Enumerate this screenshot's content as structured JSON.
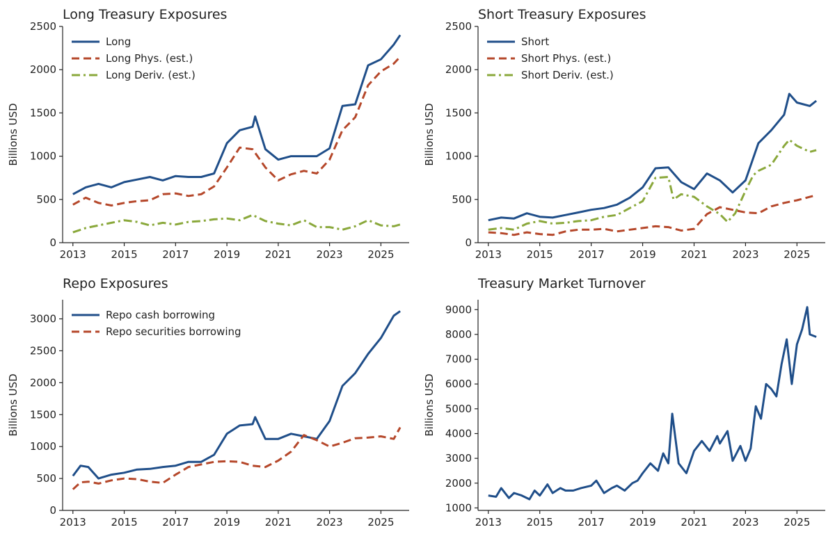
{
  "colors": {
    "blue": "#1f4e89",
    "orange": "#b5472a",
    "green": "#8aa83b",
    "axis": "#222222"
  },
  "chart_data": [
    {
      "type": "line",
      "title": "Long Treasury Exposures",
      "ylabel": "Billions USD",
      "xlim": [
        2012.6,
        2026.1
      ],
      "ylim": [
        0,
        2500
      ],
      "xticks": [
        2013,
        2015,
        2017,
        2019,
        2021,
        2023,
        2025
      ],
      "xtick_labels": [
        "2013",
        "2015",
        "2017",
        "2019",
        "2021",
        "2023",
        "2025"
      ],
      "yticks": [
        0,
        500,
        1000,
        1500,
        2000,
        2500
      ],
      "ytick_labels": [
        "0",
        "500",
        "1000",
        "1500",
        "2000",
        "2500"
      ],
      "legend": "top-left",
      "grid": false,
      "series": [
        {
          "name": "Long",
          "style": "solid",
          "color": "#1f4e89",
          "x": [
            2013.0,
            2013.5,
            2014.0,
            2014.5,
            2015.0,
            2015.5,
            2016.0,
            2016.5,
            2017.0,
            2017.5,
            2018.0,
            2018.5,
            2019.0,
            2019.5,
            2020.0,
            2020.1,
            2020.5,
            2021.0,
            2021.5,
            2022.0,
            2022.5,
            2023.0,
            2023.5,
            2024.0,
            2024.5,
            2025.0,
            2025.5,
            2025.75
          ],
          "y": [
            560,
            640,
            680,
            640,
            700,
            730,
            760,
            720,
            770,
            760,
            760,
            800,
            1150,
            1300,
            1340,
            1460,
            1080,
            960,
            1000,
            1000,
            1000,
            1090,
            1580,
            1600,
            2050,
            2120,
            2290,
            2400
          ]
        },
        {
          "name": "Long Phys. (est.)",
          "style": "dashed",
          "color": "#b5472a",
          "x": [
            2013.0,
            2013.5,
            2014.0,
            2014.5,
            2015.0,
            2015.5,
            2016.0,
            2016.5,
            2017.0,
            2017.5,
            2018.0,
            2018.5,
            2019.0,
            2019.5,
            2020.0,
            2020.5,
            2021.0,
            2021.5,
            2022.0,
            2022.5,
            2023.0,
            2023.5,
            2024.0,
            2024.5,
            2025.0,
            2025.5,
            2025.75
          ],
          "y": [
            440,
            520,
            460,
            430,
            460,
            480,
            490,
            560,
            570,
            540,
            560,
            650,
            870,
            1100,
            1080,
            870,
            720,
            790,
            830,
            800,
            960,
            1300,
            1450,
            1820,
            1980,
            2070,
            2150
          ]
        },
        {
          "name": "Long Deriv. (est.)",
          "style": "dashdot",
          "color": "#8aa83b",
          "x": [
            2013.0,
            2013.5,
            2014.0,
            2014.5,
            2015.0,
            2015.5,
            2016.0,
            2016.5,
            2017.0,
            2017.5,
            2018.0,
            2018.5,
            2019.0,
            2019.5,
            2020.0,
            2020.5,
            2021.0,
            2021.5,
            2022.0,
            2022.5,
            2023.0,
            2023.5,
            2024.0,
            2024.5,
            2025.0,
            2025.5,
            2025.75
          ],
          "y": [
            120,
            170,
            200,
            230,
            260,
            240,
            200,
            230,
            210,
            240,
            250,
            270,
            280,
            260,
            320,
            250,
            220,
            200,
            260,
            180,
            180,
            150,
            190,
            260,
            200,
            190,
            210
          ]
        }
      ]
    },
    {
      "type": "line",
      "title": "Short Treasury Exposures",
      "ylabel": "Billions USD",
      "xlim": [
        2012.6,
        2026.1
      ],
      "ylim": [
        0,
        2500
      ],
      "xticks": [
        2013,
        2015,
        2017,
        2019,
        2021,
        2023,
        2025
      ],
      "xtick_labels": [
        "2013",
        "2015",
        "2017",
        "2019",
        "2021",
        "2023",
        "2025"
      ],
      "yticks": [
        0,
        500,
        1000,
        1500,
        2000,
        2500
      ],
      "ytick_labels": [
        "0",
        "500",
        "1000",
        "1500",
        "2000",
        "2500"
      ],
      "legend": "top-left",
      "grid": false,
      "series": [
        {
          "name": "Short",
          "style": "solid",
          "color": "#1f4e89",
          "x": [
            2013.0,
            2013.5,
            2014.0,
            2014.5,
            2015.0,
            2015.5,
            2016.0,
            2016.5,
            2017.0,
            2017.5,
            2018.0,
            2018.5,
            2019.0,
            2019.5,
            2020.0,
            2020.5,
            2021.0,
            2021.5,
            2022.0,
            2022.5,
            2023.0,
            2023.5,
            2024.0,
            2024.5,
            2024.7,
            2025.0,
            2025.5,
            2025.75
          ],
          "y": [
            260,
            290,
            280,
            340,
            300,
            290,
            320,
            350,
            380,
            400,
            440,
            520,
            640,
            860,
            870,
            700,
            620,
            800,
            720,
            580,
            720,
            1150,
            1300,
            1480,
            1720,
            1620,
            1580,
            1640
          ]
        },
        {
          "name": "Short Phys. (est.)",
          "style": "dashed",
          "color": "#b5472a",
          "x": [
            2013.0,
            2013.5,
            2014.0,
            2014.5,
            2015.0,
            2015.5,
            2016.0,
            2016.5,
            2017.0,
            2017.5,
            2018.0,
            2018.5,
            2019.0,
            2019.5,
            2020.0,
            2020.5,
            2021.0,
            2021.5,
            2022.0,
            2022.5,
            2023.0,
            2023.5,
            2024.0,
            2024.5,
            2025.0,
            2025.5,
            2025.75
          ],
          "y": [
            120,
            110,
            90,
            120,
            100,
            90,
            130,
            150,
            150,
            160,
            130,
            150,
            170,
            190,
            180,
            140,
            160,
            330,
            410,
            380,
            350,
            340,
            420,
            460,
            490,
            530,
            550
          ]
        },
        {
          "name": "Short Deriv. (est.)",
          "style": "dashdot",
          "color": "#8aa83b",
          "x": [
            2013.0,
            2013.5,
            2014.0,
            2014.5,
            2015.0,
            2015.5,
            2016.0,
            2016.5,
            2017.0,
            2017.5,
            2018.0,
            2018.5,
            2019.0,
            2019.5,
            2020.0,
            2020.2,
            2020.5,
            2021.0,
            2021.5,
            2022.0,
            2022.3,
            2022.6,
            2023.0,
            2023.3,
            2023.5,
            2024.0,
            2024.5,
            2024.7,
            2025.0,
            2025.5,
            2025.75
          ],
          "y": [
            150,
            170,
            150,
            220,
            250,
            220,
            230,
            250,
            260,
            300,
            320,
            400,
            480,
            750,
            760,
            500,
            560,
            530,
            420,
            330,
            240,
            340,
            600,
            780,
            830,
            900,
            1120,
            1190,
            1120,
            1050,
            1070
          ]
        }
      ]
    },
    {
      "type": "line",
      "title": "Repo Exposures",
      "ylabel": "Billions USD",
      "xlim": [
        2012.6,
        2026.1
      ],
      "ylim": [
        0,
        3300
      ],
      "xticks": [
        2013,
        2015,
        2017,
        2019,
        2021,
        2023,
        2025
      ],
      "xtick_labels": [
        "2013",
        "2015",
        "2017",
        "2019",
        "2021",
        "2023",
        "2025"
      ],
      "yticks": [
        0,
        500,
        1000,
        1500,
        2000,
        2500,
        3000
      ],
      "ytick_labels": [
        "0",
        "500",
        "1000",
        "1500",
        "2000",
        "2500",
        "3000"
      ],
      "legend": "top-left",
      "grid": false,
      "series": [
        {
          "name": "Repo cash borrowing",
          "style": "solid",
          "color": "#1f4e89",
          "x": [
            2013.0,
            2013.3,
            2013.6,
            2014.0,
            2014.5,
            2015.0,
            2015.5,
            2016.0,
            2016.5,
            2017.0,
            2017.5,
            2018.0,
            2018.5,
            2019.0,
            2019.5,
            2020.0,
            2020.1,
            2020.5,
            2021.0,
            2021.5,
            2022.0,
            2022.5,
            2023.0,
            2023.5,
            2024.0,
            2024.5,
            2025.0,
            2025.5,
            2025.75
          ],
          "y": [
            540,
            700,
            680,
            500,
            560,
            590,
            640,
            650,
            680,
            700,
            760,
            760,
            870,
            1200,
            1330,
            1350,
            1460,
            1120,
            1120,
            1200,
            1160,
            1120,
            1400,
            1950,
            2150,
            2450,
            2700,
            3050,
            3120
          ]
        },
        {
          "name": "Repo securities borrowing",
          "style": "dashed",
          "color": "#b5472a",
          "x": [
            2013.0,
            2013.3,
            2013.6,
            2014.0,
            2014.5,
            2015.0,
            2015.5,
            2016.0,
            2016.5,
            2017.0,
            2017.5,
            2018.0,
            2018.5,
            2019.0,
            2019.5,
            2020.0,
            2020.5,
            2021.0,
            2021.5,
            2022.0,
            2022.5,
            2023.0,
            2023.5,
            2024.0,
            2024.5,
            2025.0,
            2025.5,
            2025.75
          ],
          "y": [
            330,
            440,
            450,
            420,
            470,
            500,
            490,
            450,
            430,
            560,
            680,
            720,
            760,
            770,
            760,
            700,
            680,
            780,
            920,
            1180,
            1100,
            1000,
            1060,
            1130,
            1140,
            1160,
            1120,
            1300
          ]
        }
      ]
    },
    {
      "type": "line",
      "title": "Treasury Market Turnover",
      "ylabel": "Billions USD",
      "xlim": [
        2012.6,
        2026.1
      ],
      "ylim": [
        900,
        9400
      ],
      "xticks": [
        2013,
        2015,
        2017,
        2019,
        2021,
        2023,
        2025
      ],
      "xtick_labels": [
        "2013",
        "2015",
        "2017",
        "2019",
        "2021",
        "2023",
        "2025"
      ],
      "yticks": [
        1000,
        2000,
        3000,
        4000,
        5000,
        6000,
        7000,
        8000,
        9000
      ],
      "ytick_labels": [
        "1000",
        "2000",
        "3000",
        "4000",
        "5000",
        "6000",
        "7000",
        "8000",
        "9000"
      ],
      "legend": "none",
      "grid": false,
      "series": [
        {
          "name": "",
          "style": "solid",
          "color": "#1f4e89",
          "x": [
            2013.0,
            2013.3,
            2013.5,
            2013.8,
            2014.0,
            2014.3,
            2014.6,
            2014.8,
            2015.0,
            2015.3,
            2015.5,
            2015.8,
            2016.0,
            2016.3,
            2016.6,
            2017.0,
            2017.2,
            2017.5,
            2017.8,
            2018.0,
            2018.3,
            2018.6,
            2018.8,
            2019.0,
            2019.3,
            2019.6,
            2019.8,
            2020.0,
            2020.15,
            2020.4,
            2020.7,
            2021.0,
            2021.3,
            2021.6,
            2021.9,
            2022.0,
            2022.3,
            2022.5,
            2022.8,
            2023.0,
            2023.2,
            2023.4,
            2023.6,
            2023.8,
            2024.0,
            2024.2,
            2024.4,
            2024.6,
            2024.8,
            2025.0,
            2025.2,
            2025.4,
            2025.5,
            2025.75
          ],
          "y": [
            1500,
            1450,
            1800,
            1400,
            1600,
            1500,
            1350,
            1700,
            1500,
            1950,
            1600,
            1800,
            1700,
            1700,
            1800,
            1900,
            2100,
            1600,
            1800,
            1900,
            1700,
            2000,
            2100,
            2400,
            2800,
            2500,
            3200,
            2800,
            4800,
            2800,
            2400,
            3300,
            3700,
            3300,
            3900,
            3600,
            4100,
            2900,
            3500,
            2900,
            3400,
            5100,
            4600,
            6000,
            5800,
            5500,
            6800,
            7800,
            6000,
            7600,
            8200,
            9100,
            8000,
            7900
          ]
        }
      ]
    }
  ]
}
